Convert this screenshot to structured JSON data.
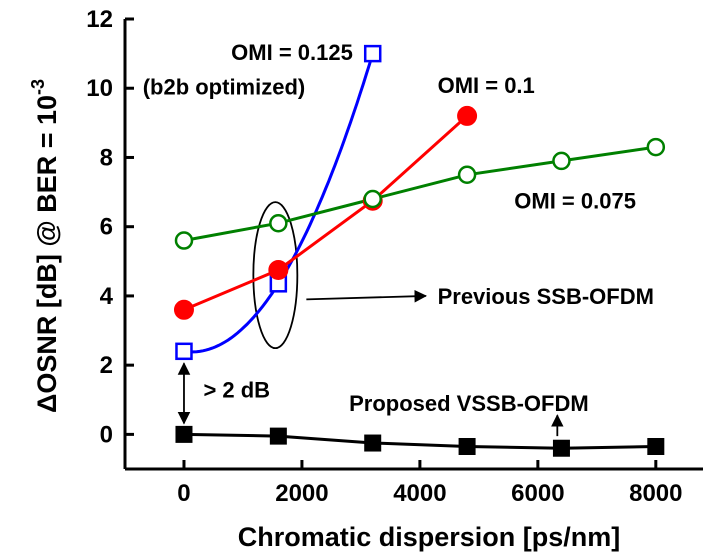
{
  "chart_data": {
    "type": "line",
    "xlabel": "Chromatic dispersion [ps/nm]",
    "ylabel": "ΔOSNR [dB] @ BER = 10",
    "ylabel_exp": "-3",
    "xlim": [
      -1000,
      8800
    ],
    "ylim": [
      -1,
      12
    ],
    "xticks": [
      0,
      2000,
      4000,
      6000,
      8000
    ],
    "yticks": [
      0,
      2,
      4,
      6,
      8,
      10,
      12
    ],
    "grid": false,
    "legend": "none",
    "series": [
      {
        "name": "OMI = 0.125",
        "name_line2": "(b2b optimized)",
        "color": "#0000ff",
        "marker": "open-square",
        "smooth": true,
        "x": [
          0,
          1600,
          3200
        ],
        "y": [
          2.4,
          4.35,
          11.0
        ]
      },
      {
        "name": "OMI = 0.1",
        "color": "#ff0000",
        "marker": "filled-circle",
        "x": [
          0,
          1600,
          3200,
          4800
        ],
        "y": [
          3.6,
          4.75,
          6.75,
          9.2
        ]
      },
      {
        "name": "OMI = 0.075",
        "color": "#008000",
        "marker": "open-circle",
        "x": [
          0,
          1600,
          3200,
          4800,
          6400,
          8000
        ],
        "y": [
          5.6,
          6.1,
          6.8,
          7.5,
          7.9,
          8.3
        ]
      },
      {
        "name": "Proposed VSSB-OFDM",
        "color": "#000000",
        "marker": "filled-square",
        "x": [
          0,
          1600,
          3200,
          4800,
          6400,
          8000
        ],
        "y": [
          0.0,
          -0.05,
          -0.25,
          -0.35,
          -0.4,
          -0.35
        ]
      }
    ],
    "annotations": {
      "previous": "Previous SSB-OFDM",
      "gap": "> 2 dB"
    }
  }
}
